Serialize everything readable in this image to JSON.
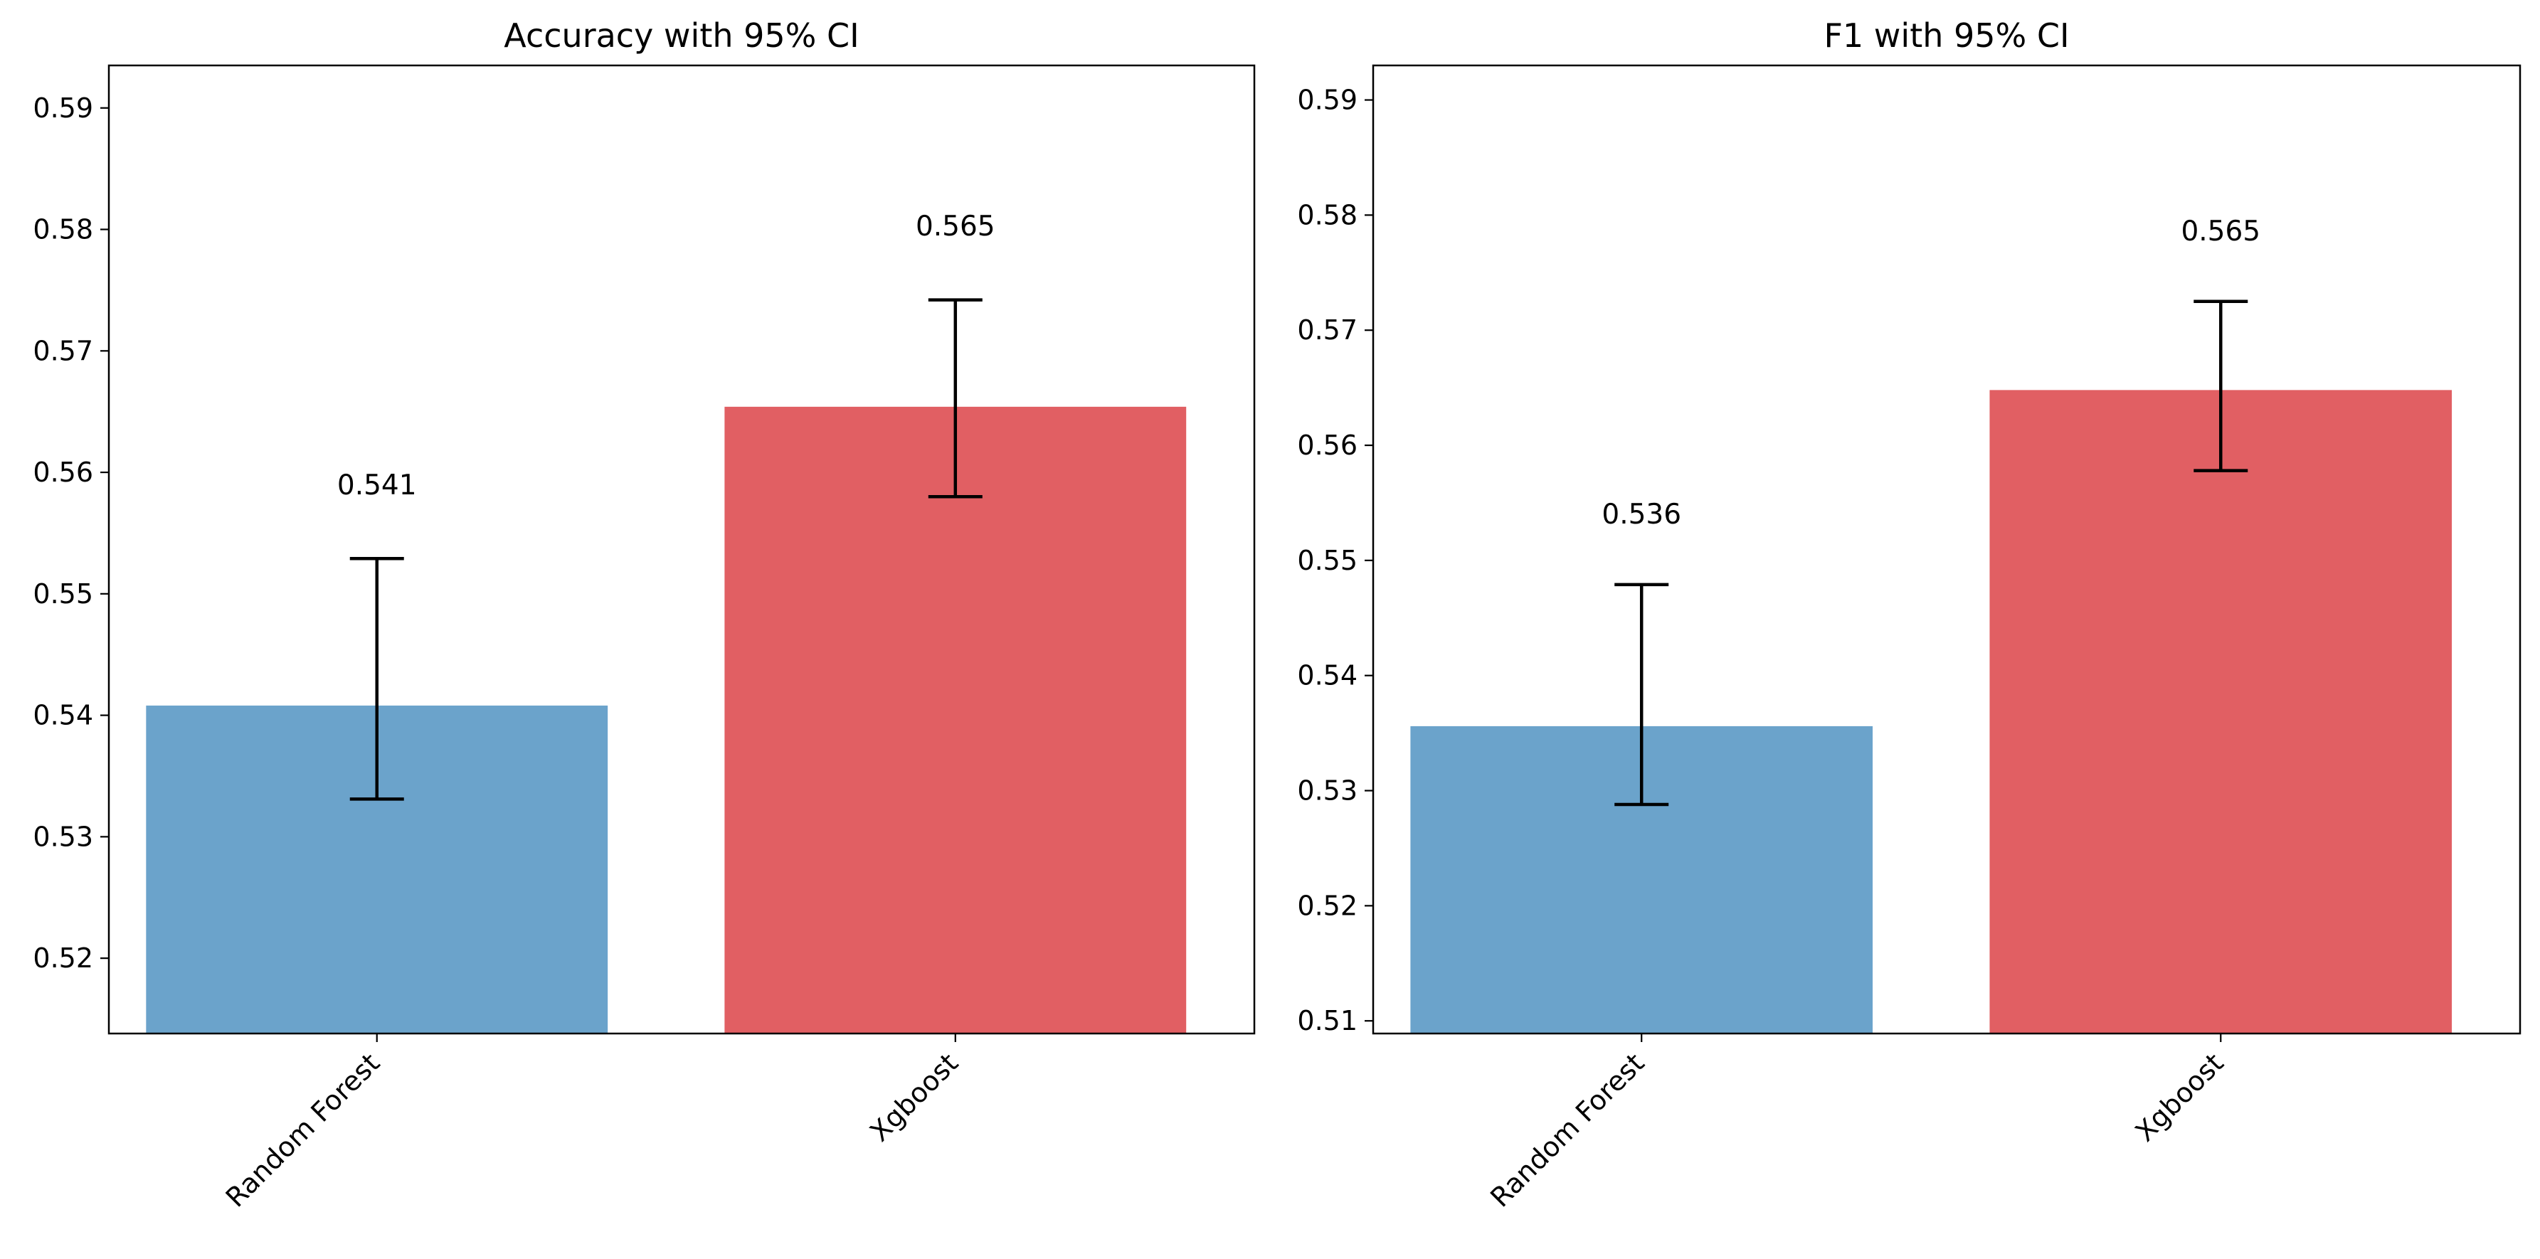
{
  "chart_data": [
    {
      "type": "bar",
      "title": "Accuracy with 95% CI",
      "xlabel": "",
      "ylabel": "",
      "categories": [
        "Random Forest",
        "Xgboost"
      ],
      "values": [
        0.5408,
        0.5654
      ],
      "ci_lower": [
        0.5331,
        0.558
      ],
      "ci_upper": [
        0.5529,
        0.5742
      ],
      "data_labels": [
        "0.541",
        "0.565"
      ],
      "colors": [
        "#6ba3cb",
        "#e15f63"
      ],
      "ylim": [
        0.5138,
        0.5935
      ],
      "yticks": [
        0.52,
        0.53,
        0.54,
        0.55,
        0.56,
        0.57,
        0.58,
        0.59
      ],
      "ytick_labels": [
        "0.52",
        "0.53",
        "0.54",
        "0.55",
        "0.56",
        "0.57",
        "0.58",
        "0.59"
      ],
      "grid": false,
      "legend": "none"
    },
    {
      "type": "bar",
      "title": "F1 with 95% CI",
      "xlabel": "",
      "ylabel": "",
      "categories": [
        "Random Forest",
        "Xgboost"
      ],
      "values": [
        0.5356,
        0.5648
      ],
      "ci_lower": [
        0.5288,
        0.5578
      ],
      "ci_upper": [
        0.5479,
        0.5725
      ],
      "data_labels": [
        "0.536",
        "0.565"
      ],
      "colors": [
        "#6ba3cb",
        "#e15f63"
      ],
      "ylim": [
        0.5089,
        0.593
      ],
      "yticks": [
        0.51,
        0.52,
        0.53,
        0.54,
        0.55,
        0.56,
        0.57,
        0.58,
        0.59
      ],
      "ytick_labels": [
        "0.51",
        "0.52",
        "0.53",
        "0.54",
        "0.55",
        "0.56",
        "0.57",
        "0.58",
        "0.59"
      ],
      "grid": false,
      "legend": "none"
    }
  ]
}
